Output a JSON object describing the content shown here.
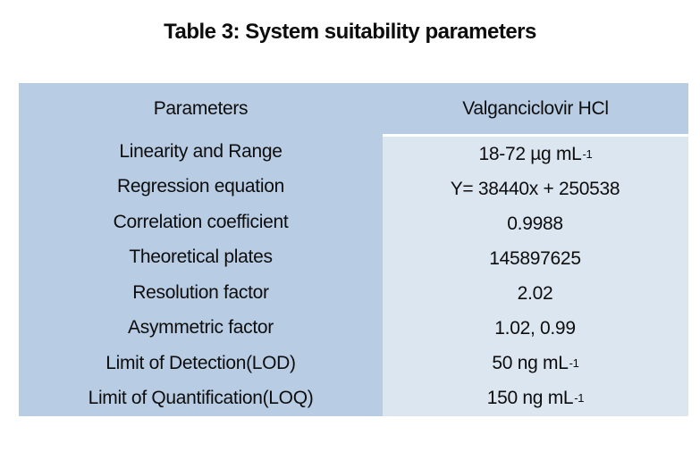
{
  "title": "Table 3: System suitability parameters",
  "colors": {
    "table_background": "#b8cce4",
    "value_column_background": "#dce6f1",
    "separator_line": "#ffffff",
    "text": "#0d0d0d"
  },
  "table": {
    "header": {
      "parameter_col": "Parameters",
      "value_col": "Valganciclovir HCl"
    },
    "rows": [
      {
        "parameter": "Linearity and Range",
        "value": "18-72 µg mL",
        "value_sup": "-1"
      },
      {
        "parameter": "Regression equation",
        "value": "Y= 38440x + 250538",
        "value_sup": ""
      },
      {
        "parameter": "Correlation coefficient",
        "value": "0.9988",
        "value_sup": ""
      },
      {
        "parameter": "Theoretical plates",
        "value": "145897625",
        "value_sup": ""
      },
      {
        "parameter": "Resolution factor",
        "value": "2.02",
        "value_sup": ""
      },
      {
        "parameter": "Asymmetric factor",
        "value": "1.02, 0.99",
        "value_sup": ""
      },
      {
        "parameter": "Limit of Detection(LOD)",
        "value": "50 ng mL",
        "value_sup": "-1"
      },
      {
        "parameter": "Limit of Quantification(LOQ)",
        "value": "150 ng mL",
        "value_sup": "-1"
      }
    ]
  }
}
